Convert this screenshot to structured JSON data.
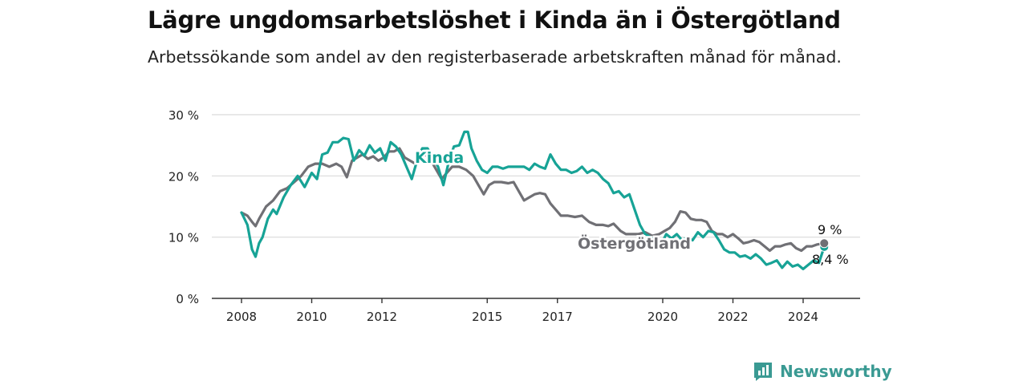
{
  "title": "Lägre ungdomsarbetslöshet i Kinda än i Östergötland",
  "subtitle": "Arbetssökande som andel av den registerbaserade arbetskraften månad för månad.",
  "brand": "Newsworthy",
  "colors": {
    "kinda": "#17a396",
    "ostergotland": "#707075",
    "grid": "#d9d9d9",
    "axis": "#333333"
  },
  "chart_data": {
    "type": "line",
    "ylim": [
      0,
      30
    ],
    "yticks": [
      "0 %",
      "10 %",
      "20 %",
      "30 %"
    ],
    "xlim": [
      2008,
      2026
    ],
    "xticks": [
      "2008",
      "2010",
      "2012",
      "2015",
      "2017",
      "2020",
      "2022",
      "2024"
    ],
    "end_labels": {
      "ostergotland": "9 %",
      "kinda": "8,4 %"
    },
    "series": [
      {
        "name": "Kinda",
        "key": "kinda",
        "points": [
          [
            2008.0,
            14
          ],
          [
            2008.17,
            12
          ],
          [
            2008.3,
            8
          ],
          [
            2008.4,
            6.8
          ],
          [
            2008.5,
            9
          ],
          [
            2008.6,
            10
          ],
          [
            2008.75,
            13
          ],
          [
            2008.9,
            14.5
          ],
          [
            2009.0,
            13.8
          ],
          [
            2009.2,
            16.5
          ],
          [
            2009.4,
            18.5
          ],
          [
            2009.6,
            20
          ],
          [
            2009.8,
            18.2
          ],
          [
            2010.0,
            20.5
          ],
          [
            2010.15,
            19.5
          ],
          [
            2010.3,
            23.5
          ],
          [
            2010.45,
            23.8
          ],
          [
            2010.6,
            25.5
          ],
          [
            2010.75,
            25.5
          ],
          [
            2010.9,
            26.2
          ],
          [
            2011.05,
            26
          ],
          [
            2011.2,
            22.5
          ],
          [
            2011.35,
            24.2
          ],
          [
            2011.5,
            23.3
          ],
          [
            2011.65,
            25
          ],
          [
            2011.8,
            23.8
          ],
          [
            2011.95,
            24.5
          ],
          [
            2012.1,
            22.5
          ],
          [
            2012.25,
            25.5
          ],
          [
            2012.4,
            24.8
          ],
          [
            2012.55,
            23.5
          ],
          [
            2012.7,
            21.5
          ],
          [
            2012.85,
            19.5
          ],
          [
            2013.0,
            22.5
          ],
          [
            2013.15,
            24.5
          ],
          [
            2013.3,
            24.5
          ],
          [
            2013.45,
            23
          ],
          [
            2013.6,
            21.5
          ],
          [
            2013.75,
            18.5
          ],
          [
            2013.9,
            22.2
          ],
          [
            2014.05,
            24.8
          ],
          [
            2014.2,
            25
          ],
          [
            2014.35,
            27.2
          ],
          [
            2014.45,
            27.2
          ],
          [
            2014.55,
            24.5
          ],
          [
            2014.7,
            22.5
          ],
          [
            2014.85,
            21
          ],
          [
            2015.0,
            20.5
          ],
          [
            2015.15,
            21.5
          ],
          [
            2015.3,
            21.5
          ],
          [
            2015.45,
            21.2
          ],
          [
            2015.6,
            21.5
          ],
          [
            2015.75,
            21.5
          ],
          [
            2015.9,
            21.5
          ],
          [
            2016.05,
            21.5
          ],
          [
            2016.2,
            21
          ],
          [
            2016.35,
            22
          ],
          [
            2016.5,
            21.5
          ],
          [
            2016.65,
            21.2
          ],
          [
            2016.8,
            23.5
          ],
          [
            2016.95,
            22
          ],
          [
            2017.1,
            21
          ],
          [
            2017.25,
            21
          ],
          [
            2017.4,
            20.5
          ],
          [
            2017.55,
            20.8
          ],
          [
            2017.7,
            21.5
          ],
          [
            2017.85,
            20.5
          ],
          [
            2018.0,
            21
          ],
          [
            2018.15,
            20.5
          ],
          [
            2018.3,
            19.5
          ],
          [
            2018.45,
            18.8
          ],
          [
            2018.6,
            17.2
          ],
          [
            2018.75,
            17.5
          ],
          [
            2018.9,
            16.5
          ],
          [
            2019.05,
            17
          ],
          [
            2019.2,
            14.5
          ],
          [
            2019.35,
            12
          ],
          [
            2019.5,
            10.5
          ],
          [
            2019.65,
            10
          ],
          [
            2019.8,
            9.5
          ],
          [
            2019.95,
            8.8
          ],
          [
            2020.1,
            10.5
          ],
          [
            2020.25,
            9.8
          ],
          [
            2020.4,
            10.5
          ],
          [
            2020.55,
            9.5
          ],
          [
            2020.7,
            10
          ],
          [
            2020.85,
            9.5
          ],
          [
            2021.0,
            10.8
          ],
          [
            2021.15,
            10
          ],
          [
            2021.3,
            11
          ],
          [
            2021.45,
            10.8
          ],
          [
            2021.6,
            9.5
          ],
          [
            2021.75,
            8
          ],
          [
            2021.9,
            7.5
          ],
          [
            2022.05,
            7.5
          ],
          [
            2022.2,
            6.8
          ],
          [
            2022.35,
            7
          ],
          [
            2022.5,
            6.5
          ],
          [
            2022.65,
            7.2
          ],
          [
            2022.8,
            6.5
          ],
          [
            2022.95,
            5.5
          ],
          [
            2023.1,
            5.8
          ],
          [
            2023.25,
            6.2
          ],
          [
            2023.4,
            5
          ],
          [
            2023.55,
            6
          ],
          [
            2023.7,
            5.2
          ],
          [
            2023.85,
            5.5
          ],
          [
            2024.0,
            4.8
          ],
          [
            2024.15,
            5.5
          ],
          [
            2024.3,
            6.2
          ],
          [
            2024.45,
            5.8
          ],
          [
            2024.6,
            8.4
          ]
        ]
      },
      {
        "name": "Östergötland",
        "key": "ostergotland",
        "points": [
          [
            2008.0,
            14
          ],
          [
            2008.17,
            13.5
          ],
          [
            2008.3,
            12.5
          ],
          [
            2008.4,
            11.8
          ],
          [
            2008.5,
            13
          ],
          [
            2008.7,
            15
          ],
          [
            2008.9,
            16
          ],
          [
            2009.1,
            17.5
          ],
          [
            2009.3,
            18
          ],
          [
            2009.5,
            19
          ],
          [
            2009.7,
            20
          ],
          [
            2009.9,
            21.5
          ],
          [
            2010.1,
            22
          ],
          [
            2010.3,
            22
          ],
          [
            2010.5,
            21.5
          ],
          [
            2010.7,
            22
          ],
          [
            2010.85,
            21.5
          ],
          [
            2011.0,
            19.8
          ],
          [
            2011.15,
            22.5
          ],
          [
            2011.3,
            23
          ],
          [
            2011.45,
            23.5
          ],
          [
            2011.6,
            22.8
          ],
          [
            2011.75,
            23.2
          ],
          [
            2011.9,
            22.5
          ],
          [
            2012.05,
            23
          ],
          [
            2012.2,
            24
          ],
          [
            2012.35,
            24
          ],
          [
            2012.5,
            24.5
          ],
          [
            2012.65,
            23
          ],
          [
            2012.8,
            22.5
          ],
          [
            2012.95,
            22
          ],
          [
            2013.1,
            23
          ],
          [
            2013.25,
            23.5
          ],
          [
            2013.4,
            22.5
          ],
          [
            2013.55,
            21
          ],
          [
            2013.7,
            19.5
          ],
          [
            2013.85,
            20.5
          ],
          [
            2014.0,
            21.5
          ],
          [
            2014.2,
            21.5
          ],
          [
            2014.4,
            21
          ],
          [
            2014.6,
            20
          ],
          [
            2014.75,
            18.5
          ],
          [
            2014.9,
            17
          ],
          [
            2015.05,
            18.5
          ],
          [
            2015.2,
            19
          ],
          [
            2015.4,
            19
          ],
          [
            2015.6,
            18.8
          ],
          [
            2015.75,
            19
          ],
          [
            2015.9,
            17.5
          ],
          [
            2016.05,
            16
          ],
          [
            2016.2,
            16.5
          ],
          [
            2016.35,
            17
          ],
          [
            2016.5,
            17.2
          ],
          [
            2016.65,
            17
          ],
          [
            2016.8,
            15.5
          ],
          [
            2016.95,
            14.5
          ],
          [
            2017.1,
            13.5
          ],
          [
            2017.3,
            13.5
          ],
          [
            2017.5,
            13.3
          ],
          [
            2017.7,
            13.5
          ],
          [
            2017.9,
            12.5
          ],
          [
            2018.1,
            12
          ],
          [
            2018.3,
            12
          ],
          [
            2018.45,
            11.8
          ],
          [
            2018.6,
            12.2
          ],
          [
            2018.8,
            11
          ],
          [
            2018.95,
            10.5
          ],
          [
            2019.1,
            10.5
          ],
          [
            2019.3,
            10.5
          ],
          [
            2019.5,
            10.8
          ],
          [
            2019.7,
            10.2
          ],
          [
            2019.9,
            10.5
          ],
          [
            2020.05,
            11
          ],
          [
            2020.2,
            11.5
          ],
          [
            2020.35,
            12.5
          ],
          [
            2020.5,
            14.2
          ],
          [
            2020.65,
            14
          ],
          [
            2020.8,
            13
          ],
          [
            2020.95,
            12.8
          ],
          [
            2021.1,
            12.8
          ],
          [
            2021.25,
            12.5
          ],
          [
            2021.4,
            11
          ],
          [
            2021.55,
            10.5
          ],
          [
            2021.7,
            10.5
          ],
          [
            2021.85,
            10
          ],
          [
            2022.0,
            10.5
          ],
          [
            2022.15,
            9.8
          ],
          [
            2022.3,
            9
          ],
          [
            2022.45,
            9.2
          ],
          [
            2022.6,
            9.5
          ],
          [
            2022.75,
            9.2
          ],
          [
            2022.9,
            8.5
          ],
          [
            2023.05,
            7.8
          ],
          [
            2023.2,
            8.5
          ],
          [
            2023.35,
            8.5
          ],
          [
            2023.5,
            8.8
          ],
          [
            2023.65,
            9
          ],
          [
            2023.8,
            8.2
          ],
          [
            2023.95,
            7.8
          ],
          [
            2024.1,
            8.5
          ],
          [
            2024.25,
            8.5
          ],
          [
            2024.4,
            8.8
          ],
          [
            2024.6,
            9
          ]
        ]
      }
    ]
  }
}
